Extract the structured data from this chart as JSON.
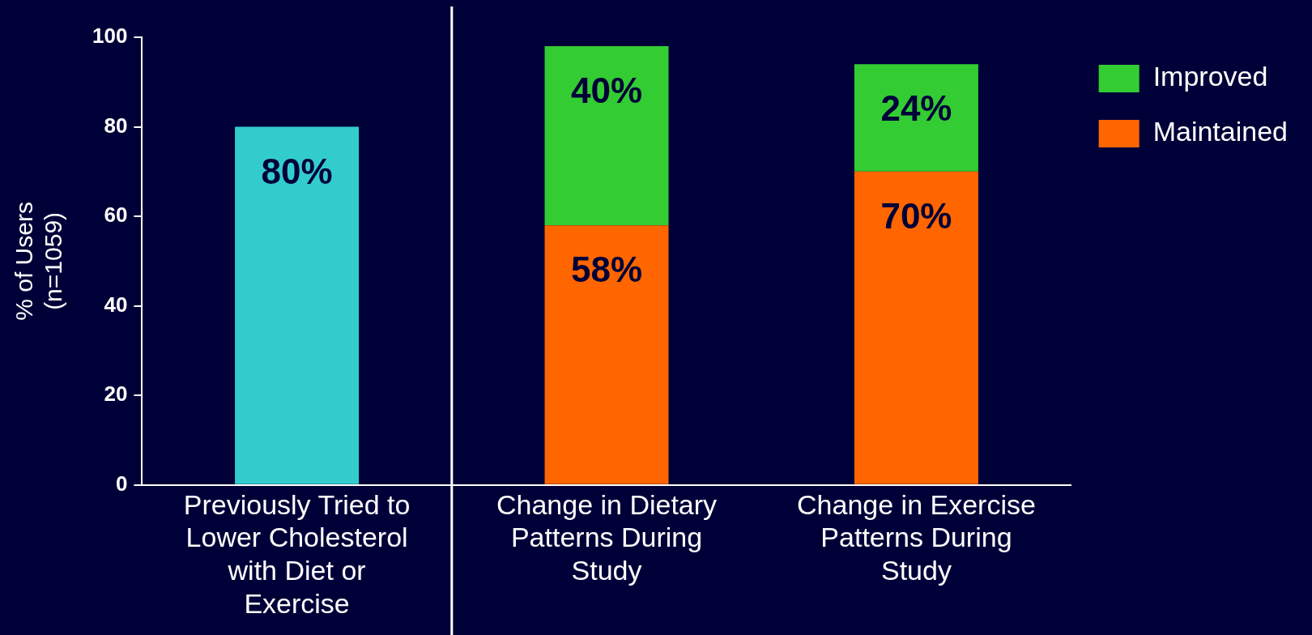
{
  "chart_data": {
    "type": "bar",
    "ylabel": "% of Users (n=1059)",
    "categories": [
      "Previously Tried to Lower Cholesterol with Diet or Exercise",
      "Change in Dietary Patterns During Study",
      "Change in Exercise Patterns During Study"
    ],
    "stacked": true,
    "ylim": [
      0,
      100
    ],
    "yticks": [
      0,
      20,
      40,
      60,
      80,
      100
    ],
    "grid": false,
    "legend": "top right",
    "series": [
      {
        "color": "#33cccc",
        "values": [
          80,
          null,
          null
        ],
        "value_labels": [
          "80%",
          null,
          null
        ]
      },
      {
        "name": "Maintained",
        "color": "#ff6600",
        "values": [
          null,
          58,
          70
        ],
        "value_labels": [
          null,
          "58%",
          "70%"
        ]
      },
      {
        "name": "Improved",
        "color": "#33cc33",
        "values": [
          null,
          40,
          24
        ],
        "value_labels": [
          null,
          "40%",
          "24%"
        ]
      }
    ]
  }
}
